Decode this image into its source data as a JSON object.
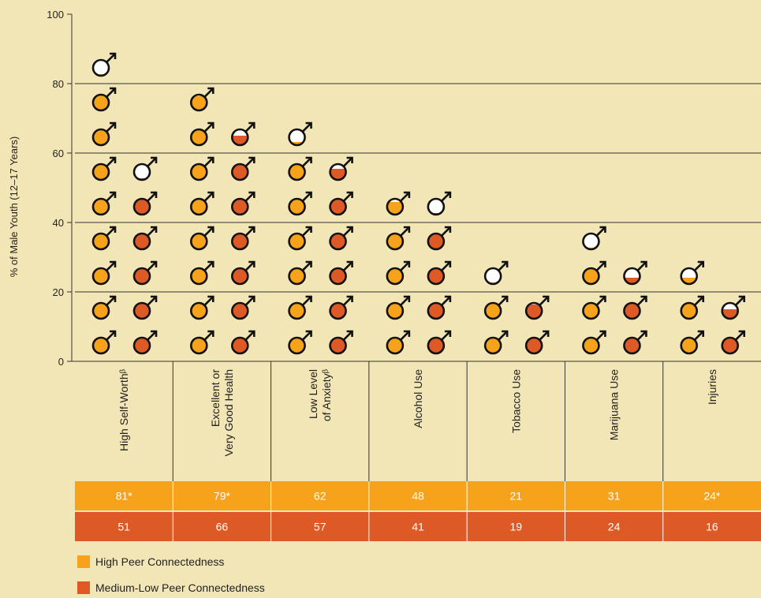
{
  "chart_data": {
    "type": "bar",
    "ylabel": "% of Male Youth (12–17 Years)",
    "ylim": [
      0,
      100
    ],
    "yticks": [
      0,
      20,
      40,
      60,
      80,
      100
    ],
    "grid": true,
    "unit_per_icon": 10,
    "categories": [
      [
        "High Self-Worthᵝ"
      ],
      [
        "Excellent or",
        "Very Good Health"
      ],
      [
        "Low Level",
        "of Anxietyᵝ"
      ],
      [
        "Alcohol Use"
      ],
      [
        "Tobacco Use"
      ],
      [
        "Marijuana Use"
      ],
      [
        "Injuries"
      ]
    ],
    "series": [
      {
        "name": "High Peer Connectedness",
        "color": "#f7a21b",
        "values": [
          81,
          79,
          62,
          48,
          21,
          31,
          24
        ],
        "labels": [
          "81*",
          "79*",
          "62",
          "48",
          "21",
          "31",
          "24*"
        ]
      },
      {
        "name": "Medium-Low Peer Connectedness",
        "color": "#dd5a26",
        "values": [
          51,
          66,
          57,
          41,
          19,
          24,
          16
        ],
        "labels": [
          "51",
          "66",
          "57",
          "41",
          "19",
          "24",
          "16"
        ]
      }
    ],
    "legend": "bottom-left",
    "icon": "male-symbol-icon"
  }
}
